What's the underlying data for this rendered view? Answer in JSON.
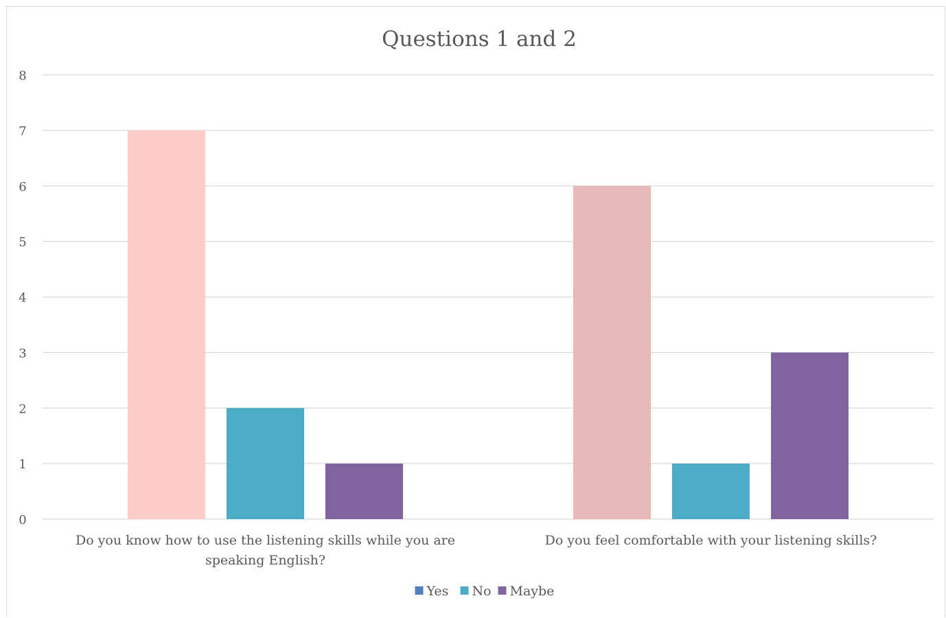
{
  "chart_data": {
    "type": "bar",
    "title": "Questions 1 and 2",
    "categories": [
      [
        "Do you know how to use the listening skills while you are",
        "speaking English?"
      ],
      [
        "Do you feel comfortable with your listening skills?"
      ]
    ],
    "series": [
      {
        "name": "Yes",
        "values": [
          7,
          6
        ],
        "legend_color": "#4f81bd",
        "bar_colors": [
          "#ffcccc",
          "#e6b8b7"
        ]
      },
      {
        "name": "No",
        "values": [
          2,
          1
        ],
        "legend_color": "#4bacc6",
        "bar_colors": [
          "#4bacc6",
          "#4bacc6"
        ]
      },
      {
        "name": "Maybe",
        "values": [
          1,
          3
        ],
        "legend_color": "#8064a2",
        "bar_colors": [
          "#8064a2",
          "#8064a2"
        ]
      }
    ],
    "ylim": [
      0,
      8
    ],
    "yticks": [
      0,
      1,
      2,
      3,
      4,
      5,
      6,
      7,
      8
    ],
    "grid": true,
    "legend_position": "bottom",
    "gridline_color": "#d9d9d9"
  }
}
